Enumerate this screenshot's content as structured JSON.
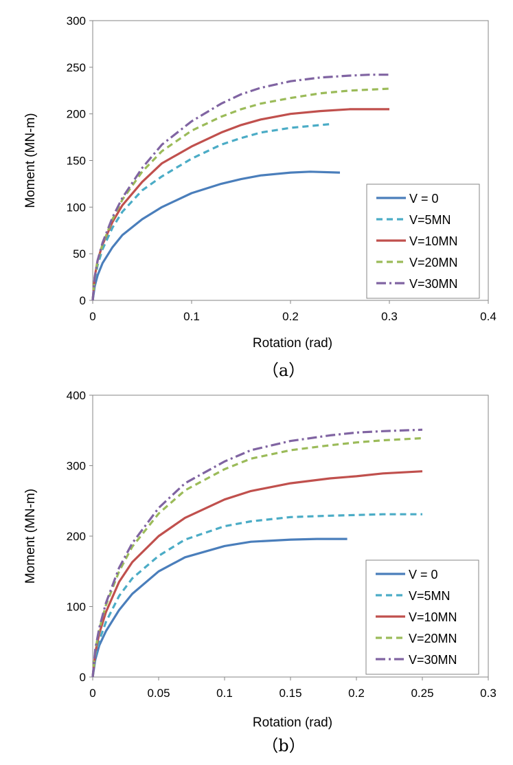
{
  "chart_data": [
    {
      "type": "line",
      "panel": "a",
      "caption": "（a）",
      "xlabel": "Rotation (rad)",
      "ylabel": "Moment (MN-m)",
      "xlim": [
        0,
        0.4
      ],
      "ylim": [
        0,
        300
      ],
      "xticks": [
        0,
        0.1,
        0.2,
        0.3,
        0.4
      ],
      "xtick_labels": [
        "0",
        "0.1",
        "0.2",
        "0.3",
        "0.4"
      ],
      "yticks": [
        0,
        50,
        100,
        150,
        200,
        250,
        300
      ],
      "ytick_labels": [
        "0",
        "50",
        "100",
        "150",
        "200",
        "250",
        "300"
      ],
      "grid": false,
      "legend_position": "lower-right",
      "series": [
        {
          "name": "V = 0",
          "color": "#4A7EBB",
          "dash": "solid",
          "x": [
            0,
            0.002,
            0.005,
            0.01,
            0.02,
            0.03,
            0.05,
            0.07,
            0.1,
            0.13,
            0.15,
            0.17,
            0.2,
            0.22,
            0.25
          ],
          "y": [
            0,
            15,
            27,
            40,
            57,
            70,
            87,
            100,
            115,
            125,
            130,
            134,
            137,
            138,
            137
          ]
        },
        {
          "name": "V=5MN",
          "color": "#4BACC6",
          "dash": "dash",
          "x": [
            0,
            0.002,
            0.005,
            0.01,
            0.02,
            0.03,
            0.05,
            0.07,
            0.1,
            0.13,
            0.15,
            0.17,
            0.2,
            0.22,
            0.24
          ],
          "y": [
            0,
            22,
            38,
            55,
            78,
            95,
            118,
            133,
            152,
            167,
            174,
            180,
            185,
            187,
            189
          ]
        },
        {
          "name": "V=10MN",
          "color": "#C0504D",
          "dash": "solid",
          "x": [
            0,
            0.002,
            0.005,
            0.01,
            0.02,
            0.03,
            0.05,
            0.07,
            0.1,
            0.13,
            0.15,
            0.17,
            0.2,
            0.23,
            0.26,
            0.28,
            0.3
          ],
          "y": [
            0,
            25,
            43,
            60,
            84,
            102,
            127,
            147,
            165,
            180,
            188,
            194,
            200,
            203,
            205,
            205,
            205
          ]
        },
        {
          "name": "V=20MN",
          "color": "#9BBB59",
          "dash": "dash",
          "x": [
            0,
            0.002,
            0.005,
            0.01,
            0.02,
            0.03,
            0.05,
            0.07,
            0.1,
            0.13,
            0.15,
            0.17,
            0.2,
            0.23,
            0.26,
            0.28,
            0.3
          ],
          "y": [
            0,
            24,
            42,
            60,
            87,
            108,
            138,
            160,
            182,
            197,
            205,
            211,
            217,
            222,
            225,
            226,
            227
          ]
        },
        {
          "name": "V=30MN",
          "color": "#8064A2",
          "dash": "dashdot",
          "x": [
            0,
            0.002,
            0.005,
            0.01,
            0.02,
            0.03,
            0.05,
            0.07,
            0.1,
            0.13,
            0.15,
            0.17,
            0.2,
            0.23,
            0.26,
            0.28,
            0.3
          ],
          "y": [
            0,
            25,
            43,
            62,
            89,
            110,
            142,
            167,
            192,
            211,
            221,
            228,
            235,
            239,
            241,
            242,
            242
          ]
        }
      ]
    },
    {
      "type": "line",
      "panel": "b",
      "caption": "（b）",
      "xlabel": "Rotation (rad)",
      "ylabel": "Moment (MN-m)",
      "xlim": [
        0,
        0.3
      ],
      "ylim": [
        0,
        400
      ],
      "xticks": [
        0,
        0.05,
        0.1,
        0.15,
        0.2,
        0.25,
        0.3
      ],
      "xtick_labels": [
        "0",
        "0.05",
        "0.1",
        "0.15",
        "0.2",
        "0.25",
        "0.3"
      ],
      "yticks": [
        0,
        100,
        200,
        300,
        400
      ],
      "ytick_labels": [
        "0",
        "100",
        "200",
        "300",
        "400"
      ],
      "grid": false,
      "legend_position": "lower-right",
      "series": [
        {
          "name": "V = 0",
          "color": "#4A7EBB",
          "dash": "solid",
          "x": [
            0,
            0.002,
            0.005,
            0.01,
            0.02,
            0.03,
            0.05,
            0.07,
            0.1,
            0.12,
            0.15,
            0.17,
            0.193
          ],
          "y": [
            0,
            25,
            45,
            65,
            95,
            118,
            150,
            170,
            186,
            192,
            195,
            196,
            196
          ]
        },
        {
          "name": "V=5MN",
          "color": "#4BACC6",
          "dash": "dash",
          "x": [
            0,
            0.002,
            0.005,
            0.01,
            0.02,
            0.03,
            0.05,
            0.07,
            0.1,
            0.12,
            0.15,
            0.18,
            0.2,
            0.22,
            0.25
          ],
          "y": [
            0,
            30,
            52,
            78,
            115,
            140,
            172,
            195,
            214,
            221,
            227,
            229,
            230,
            231,
            231
          ]
        },
        {
          "name": "V=10MN",
          "color": "#C0504D",
          "dash": "solid",
          "x": [
            0,
            0.002,
            0.005,
            0.01,
            0.02,
            0.03,
            0.05,
            0.07,
            0.1,
            0.12,
            0.15,
            0.18,
            0.2,
            0.22,
            0.25
          ],
          "y": [
            0,
            35,
            62,
            92,
            135,
            163,
            200,
            226,
            252,
            264,
            275,
            282,
            285,
            289,
            292
          ]
        },
        {
          "name": "V=20MN",
          "color": "#9BBB59",
          "dash": "dash",
          "x": [
            0,
            0.002,
            0.005,
            0.01,
            0.02,
            0.03,
            0.05,
            0.07,
            0.1,
            0.12,
            0.15,
            0.18,
            0.2,
            0.22,
            0.25
          ],
          "y": [
            0,
            38,
            68,
            102,
            150,
            185,
            232,
            265,
            295,
            310,
            322,
            329,
            333,
            336,
            339
          ]
        },
        {
          "name": "V=30MN",
          "color": "#8064A2",
          "dash": "dashdot",
          "x": [
            0,
            0.002,
            0.005,
            0.01,
            0.02,
            0.03,
            0.05,
            0.07,
            0.1,
            0.12,
            0.15,
            0.18,
            0.2,
            0.22,
            0.25
          ],
          "y": [
            0,
            40,
            70,
            105,
            155,
            190,
            240,
            275,
            306,
            322,
            335,
            343,
            347,
            349,
            351
          ]
        }
      ]
    }
  ]
}
